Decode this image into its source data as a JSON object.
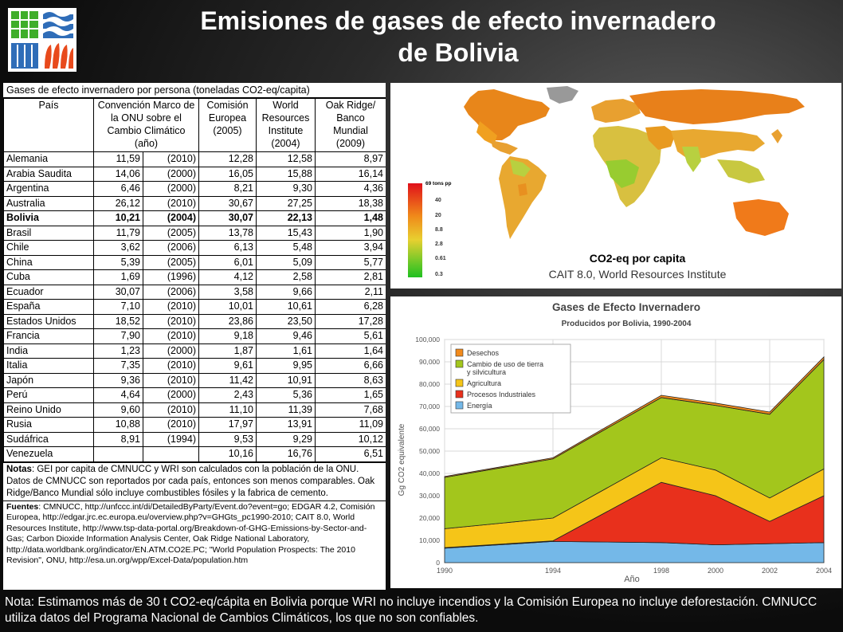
{
  "title_line1": "Emisiones de gases de efecto invernadero",
  "title_line2": "de Bolivia",
  "table": {
    "caption": "Gases de efecto invernadero por persona (toneladas CO2-eq/capita)",
    "headers": [
      "País",
      "Convención Marco de la ONU sobre el Cambio Climático (año)",
      "Comisión Europea (2005)",
      "World Resources Institute (2004)",
      "Oak Ridge/ Banco Mundial (2009)"
    ],
    "rows": [
      {
        "country": "Alemania",
        "unfccc": "11,59",
        "year": "(2010)",
        "ec": "12,28",
        "wri": "12,58",
        "ornl": "8,97"
      },
      {
        "country": "Arabia Saudita",
        "unfccc": "14,06",
        "year": "(2000)",
        "ec": "16,05",
        "wri": "15,88",
        "ornl": "16,14"
      },
      {
        "country": "Argentina",
        "unfccc": "6,46",
        "year": "(2000)",
        "ec": "8,21",
        "wri": "9,30",
        "ornl": "4,36"
      },
      {
        "country": "Australia",
        "unfccc": "26,12",
        "year": "(2010)",
        "ec": "30,67",
        "wri": "27,25",
        "ornl": "18,38"
      },
      {
        "country": "Bolivia",
        "unfccc": "10,21",
        "year": "(2004)",
        "ec": "30,07",
        "wri": "22,13",
        "ornl": "1,48"
      },
      {
        "country": "Brasil",
        "unfccc": "11,79",
        "year": "(2005)",
        "ec": "13,78",
        "wri": "15,43",
        "ornl": "1,90"
      },
      {
        "country": "Chile",
        "unfccc": "3,62",
        "year": "(2006)",
        "ec": "6,13",
        "wri": "5,48",
        "ornl": "3,94"
      },
      {
        "country": "China",
        "unfccc": "5,39",
        "year": "(2005)",
        "ec": "6,01",
        "wri": "5,09",
        "ornl": "5,77"
      },
      {
        "country": "Cuba",
        "unfccc": "1,69",
        "year": "(1996)",
        "ec": "4,12",
        "wri": "2,58",
        "ornl": "2,81"
      },
      {
        "country": "Ecuador",
        "unfccc": "30,07",
        "year": "(2006)",
        "ec": "3,58",
        "wri": "9,66",
        "ornl": "2,11"
      },
      {
        "country": "España",
        "unfccc": "7,10",
        "year": "(2010)",
        "ec": "10,01",
        "wri": "10,61",
        "ornl": "6,28"
      },
      {
        "country": "Estados Unidos",
        "unfccc": "18,52",
        "year": "(2010)",
        "ec": "23,86",
        "wri": "23,50",
        "ornl": "17,28"
      },
      {
        "country": "Francia",
        "unfccc": "7,90",
        "year": "(2010)",
        "ec": "9,18",
        "wri": "9,46",
        "ornl": "5,61"
      },
      {
        "country": "India",
        "unfccc": "1,23",
        "year": "(2000)",
        "ec": "1,87",
        "wri": "1,61",
        "ornl": "1,64"
      },
      {
        "country": "Italia",
        "unfccc": "7,35",
        "year": "(2010)",
        "ec": "9,61",
        "wri": "9,95",
        "ornl": "6,66"
      },
      {
        "country": "Japón",
        "unfccc": "9,36",
        "year": "(2010)",
        "ec": "11,42",
        "wri": "10,91",
        "ornl": "8,63"
      },
      {
        "country": "Perú",
        "unfccc": "4,64",
        "year": "(2000)",
        "ec": "2,43",
        "wri": "5,36",
        "ornl": "1,65"
      },
      {
        "country": "Reino Unido",
        "unfccc": "9,60",
        "year": "(2010)",
        "ec": "11,10",
        "wri": "11,39",
        "ornl": "7,68"
      },
      {
        "country": "Rusia",
        "unfccc": "10,88",
        "year": "(2010)",
        "ec": "17,97",
        "wri": "13,91",
        "ornl": "11,09"
      },
      {
        "country": "Sudáfrica",
        "unfccc": "8,91",
        "year": "(1994)",
        "ec": "9,53",
        "wri": "9,29",
        "ornl": "10,12"
      },
      {
        "country": "Venezuela",
        "unfccc": "",
        "year": "",
        "ec": "10,16",
        "wri": "16,76",
        "ornl": "6,51"
      }
    ],
    "notes_label": "Notas",
    "notes_text": ": GEI por capita de CMNUCC y WRI son calculados con la población de la ONU. Datos de CMNUCC son reportados por cada país, entonces son menos comparables. Oak Ridge/Banco Mundial sólo incluye combustibles fósiles y la fabrica de cemento.",
    "sources_label": "Fuentes",
    "sources_text": ": CMNUCC, http://unfccc.int/di/DetailedByParty/Event.do?event=go; EDGAR 4.2, Comisión Europea, http://edgar.jrc.ec.europa.eu/overview.php?v=GHGts_pc1990-2010; CAIT 8.0, World Resources Institute, http://www.tsp-data-portal.org/Breakdown-of-GHG-Emissions-by-Sector-and-Gas; Carbon Dioxide Information Analysis Center, Oak Ridge National Laboratory, http://data.worldbank.org/indicator/EN.ATM.CO2E.PC; \"World Population Prospects: The 2010 Revision\", ONU, http://esa.un.org/wpp/Excel-Data/population.htm"
  },
  "map": {
    "caption": "CO2-eq por capita",
    "source": "CAIT 8.0, World Resources Institute",
    "legend_title": "69 tons pp",
    "legend_ticks": [
      "40",
      "20",
      "8.8",
      "2.8",
      "0.61",
      "0.3"
    ]
  },
  "chart_data": {
    "type": "area",
    "title": "Gases de Efecto Invernadero",
    "subtitle": "Producidos por Bolivia, 1990-2004",
    "xlabel": "Año",
    "ylabel": "Gg CO2 equivalente",
    "x": [
      1990,
      1994,
      1998,
      2000,
      2002,
      2004
    ],
    "ylim": [
      0,
      100000
    ],
    "yticks": [
      "0",
      "10,000",
      "20,000",
      "30,000",
      "40,000",
      "50,000",
      "60,000",
      "70,000",
      "80,000",
      "90,000",
      "100,000"
    ],
    "xticks": [
      "1990",
      "1994",
      "1998",
      "2000",
      "2002",
      "2004"
    ],
    "stacked": true,
    "series": [
      {
        "name": "Energía",
        "color": "#74b8e8",
        "values": [
          6500,
          9500,
          9000,
          8000,
          8500,
          9000
        ]
      },
      {
        "name": "Procesos Industriales",
        "color": "#e8301c",
        "values": [
          200,
          300,
          27000,
          22000,
          10000,
          21000
        ]
      },
      {
        "name": "Agricultura",
        "color": "#f5c518",
        "values": [
          8500,
          10200,
          11000,
          11500,
          10500,
          12000
        ]
      },
      {
        "name": "Cambio de uso de tierra y silvicultura",
        "color": "#a3c61c",
        "values": [
          23000,
          26500,
          27000,
          29000,
          37500,
          49000
        ]
      },
      {
        "name": "Desechos",
        "color": "#f28a1c",
        "values": [
          400,
          500,
          1000,
          1000,
          1000,
          1200
        ]
      }
    ],
    "legend_order": [
      "Desechos",
      "Cambio de uso de tierra y silvicultura",
      "Agricultura",
      "Procesos Industriales",
      "Energía"
    ],
    "legend_position": "top-left",
    "grid": true
  },
  "bottom_note": "Nota: Estimamos más de 30 t CO2-eq/cápita en Bolivia porque WRI no incluye incendios y la Comisión Europea no incluye deforestación. CMNUCC utiliza datos del Programa Nacional de Cambios Climáticos, los que no son confiables."
}
